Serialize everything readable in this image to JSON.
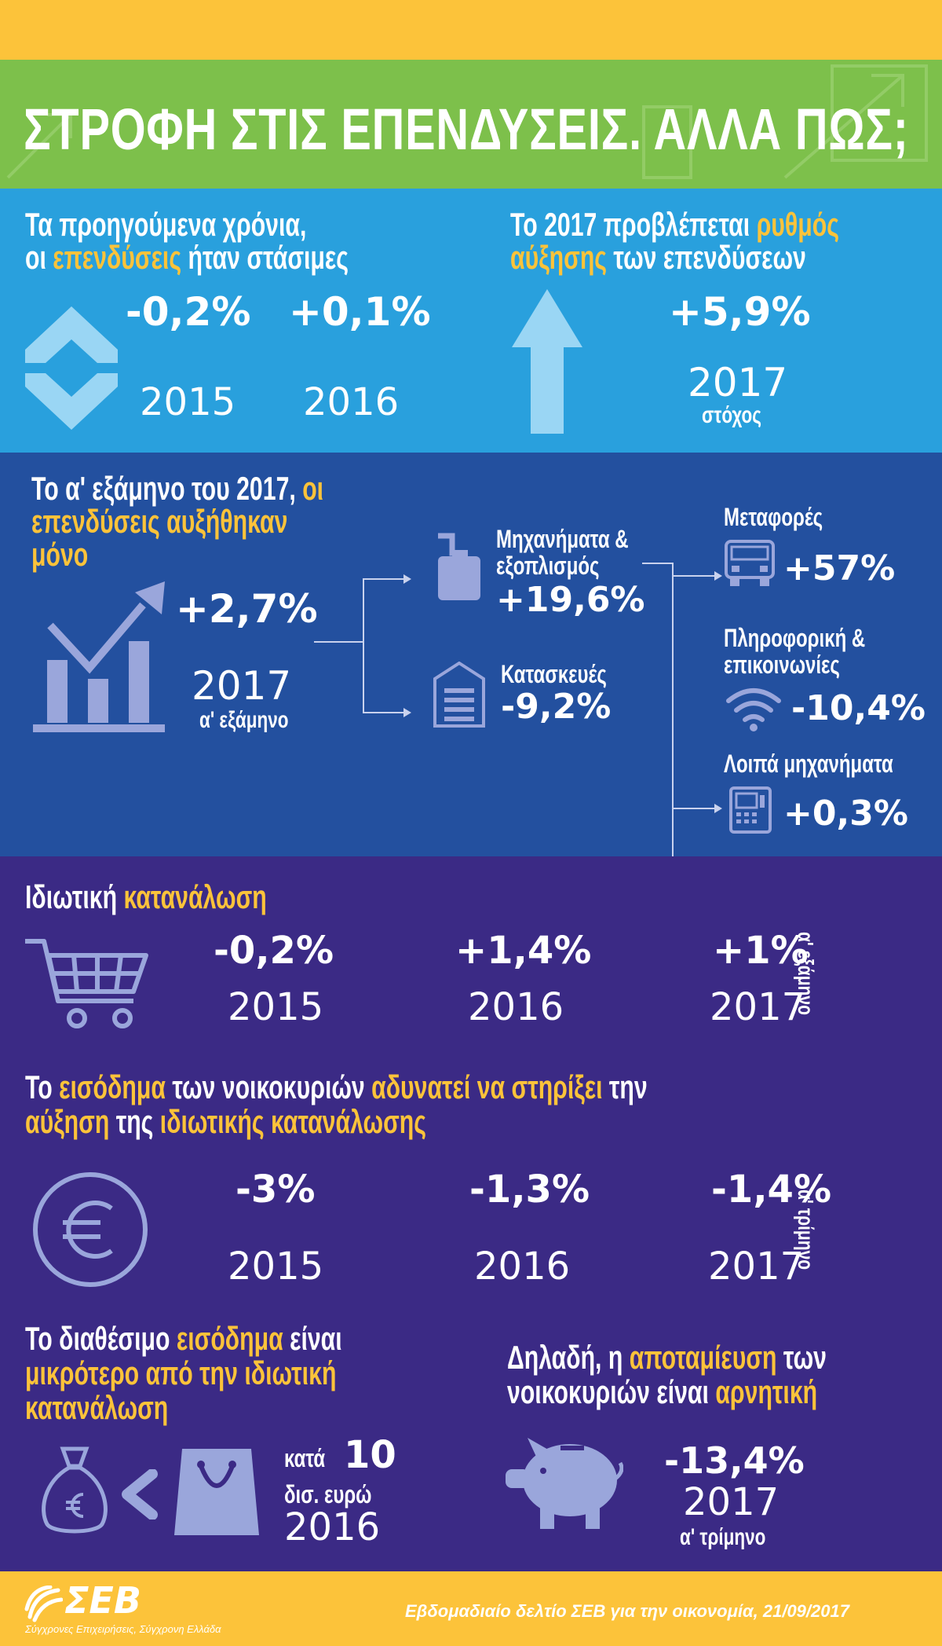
{
  "header": {
    "title": "ΣΤΡΟΦΗ ΣΤΙΣ ΕΠΕΝΔΥΣΕΙΣ. ΑΛΛΑ ΠΩΣ;"
  },
  "past": {
    "line1": "Τα προηγούμενα χρόνια,",
    "line2_a": "οι ",
    "line2_b": "επενδύσεις",
    "line2_c": " ήταν στάσιμες",
    "v1": "-0,2%",
    "y1": "2015",
    "v2": "+0,1%",
    "y2": "2016"
  },
  "forecast": {
    "line1_a": "Το 2017 προβλέπεται ",
    "line1_b": "ρυθμός",
    "line2_a": "αύξησης",
    "line2_b": " των επενδύσεων",
    "value": "+5,9%",
    "year": "2017",
    "sub": "στόχος"
  },
  "h1": {
    "line1_a": "Το α' εξάμηνο του 2017, ",
    "line1_b": "οι",
    "line2": "επενδύσεις αυξήθηκαν",
    "line3": "μόνο",
    "value": "+2,7%",
    "year": "2017",
    "sub": "α' εξάμηνο",
    "machinery_l1": "Μηχανήματα &",
    "machinery_l2": "εξοπλισμός",
    "machinery_v": "+19,6%",
    "construction_l": "Κατασκευές",
    "construction_v": "-9,2%",
    "transport_l": "Μεταφορές",
    "transport_v": "+57%",
    "it_l1": "Πληροφορική &",
    "it_l2": "επικοινωνίες",
    "it_v": "-10,4%",
    "other_l": "Λοιπά μηχανήματα",
    "other_v": "+0,3%"
  },
  "consumption": {
    "title_a": "Ιδιωτική ",
    "title_b": "κατανάλωση",
    "v1": "-0,2%",
    "y1": "2015",
    "v2": "+1,4%",
    "y2": "2016",
    "v3": "+1%",
    "y3": "2017",
    "side": "α' εξάμηνο"
  },
  "income": {
    "l1_a": "Το ",
    "l1_b": "εισόδημα",
    "l1_c": " των νοικοκυριών ",
    "l1_d": "αδυνατεί να στηρίξει",
    "l1_e": " την",
    "l2_a": "αύξηση",
    "l2_b": " της ",
    "l2_c": "ιδιωτικής κατανάλωσης",
    "v1": "-3%",
    "y1": "2015",
    "v2": "-1,3%",
    "y2": "2016",
    "v3": "-1,4%",
    "y3": "2017",
    "side": "α' τρίμηνο"
  },
  "disposable": {
    "l1_a": "Το διαθέσιμο ",
    "l1_b": "εισόδημα",
    "l1_c": " είναι",
    "l2": "μικρότερο από την ιδιωτική",
    "l3": "κατανάλωση",
    "kata": "κατά",
    "amount": "10",
    "unit": "δισ. ευρώ",
    "year": "2016"
  },
  "savings": {
    "l1_a": "Δηλαδή, η ",
    "l1_b": "αποταμίευση",
    "l1_c": " των",
    "l2_a": "νοικοκυριών είναι ",
    "l2_b": "αρνητική",
    "value": "-13,4%",
    "year": "2017",
    "sub": "α' τρίμηνο"
  },
  "footer": {
    "logo": "ΣΕΒ",
    "tagline": "Σύγχρονες Επιχειρήσεις, Σύγχρονη Ελλάδα",
    "source": "Εβδομαδιαίο δελτίο ΣΕΒ για την οικονομία, 21/09/2017"
  },
  "colors": {
    "yellow": "#fcc33a",
    "green": "#7dc04b",
    "light_blue": "#29a0dd",
    "dark_blue": "#23509f",
    "purple": "#3b2a85",
    "icon": "#9aa6db"
  }
}
